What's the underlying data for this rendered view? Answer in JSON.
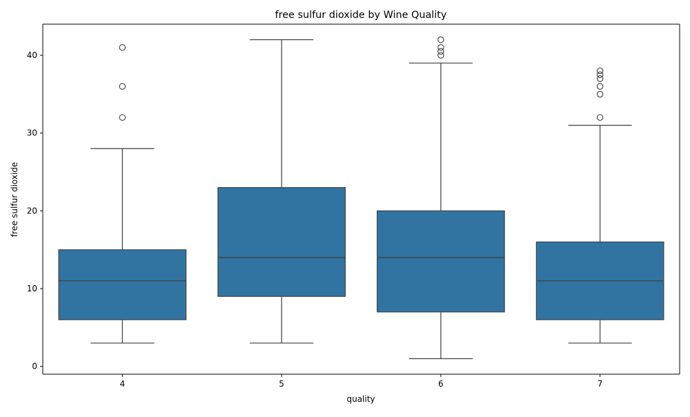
{
  "chart_data": {
    "type": "box",
    "title": "free sulfur dioxide by Wine Quality",
    "xlabel": "quality",
    "ylabel": "free sulfur dioxide",
    "categories": [
      "4",
      "5",
      "6",
      "7"
    ],
    "ylim": [
      -1,
      44
    ],
    "yticks": [
      0,
      10,
      20,
      30,
      40
    ],
    "grid": false,
    "legend": "none",
    "box_color": "#3274a1",
    "line_color": "#3d3d3d",
    "boxes": [
      {
        "category": "4",
        "whisker_low": 3,
        "q1": 6,
        "median": 11,
        "q3": 15,
        "whisker_high": 28,
        "outliers": [
          32,
          36,
          41
        ]
      },
      {
        "category": "5",
        "whisker_low": 3,
        "q1": 9,
        "median": 14,
        "q3": 23,
        "whisker_high": 42,
        "outliers": []
      },
      {
        "category": "6",
        "whisker_low": 1,
        "q1": 7,
        "median": 14,
        "q3": 20,
        "whisker_high": 39,
        "outliers": [
          40,
          40.5,
          41,
          42
        ]
      },
      {
        "category": "7",
        "whisker_low": 3,
        "q1": 6,
        "median": 11,
        "q3": 16,
        "whisker_high": 31,
        "outliers": [
          32,
          35,
          36,
          37,
          37.5,
          38
        ]
      }
    ]
  }
}
